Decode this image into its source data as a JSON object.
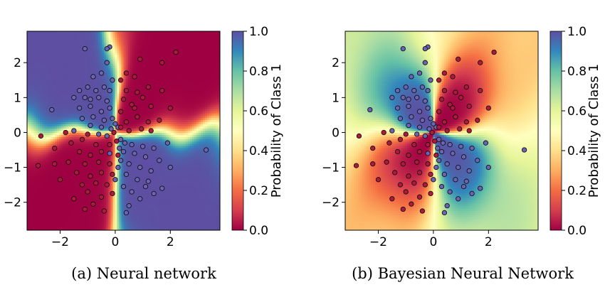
{
  "chart_data": [
    {
      "type": "heatmap",
      "panel": "a",
      "caption": "(a) Neural network",
      "colorbar_label": "Probability of Class 1",
      "colorbar_ticks": [
        "0.0",
        "0.2",
        "0.4",
        "0.6",
        "0.8",
        "1.0"
      ],
      "colorbar_range": [
        0.0,
        1.0
      ],
      "colormap": "Spectral",
      "xlim": [
        -3.2,
        3.8
      ],
      "ylim": [
        -2.8,
        2.9
      ],
      "xticks": [
        -2,
        0,
        2
      ],
      "xtick_labels": [
        "−2",
        "0",
        "2"
      ],
      "yticks": [
        -2,
        -1,
        0,
        1,
        2
      ],
      "ytick_labels": [
        "−2",
        "−1",
        "0",
        "1",
        "2"
      ],
      "grid": false,
      "legend": "none",
      "class_colors": {
        "class_0": "#b2183c",
        "class_1": "#6b63b5"
      }
    },
    {
      "type": "heatmap",
      "panel": "b",
      "caption": "(b) Bayesian Neural Network",
      "colorbar_label": "Probability of Class 1",
      "colorbar_ticks": [
        "0.0",
        "0.2",
        "0.4",
        "0.6",
        "0.8",
        "1.0"
      ],
      "colorbar_range": [
        0.0,
        1.0
      ],
      "colormap": "Spectral",
      "xlim": [
        -3.2,
        3.8
      ],
      "ylim": [
        -2.8,
        2.9
      ],
      "xticks": [
        -2,
        0,
        2
      ],
      "xtick_labels": [
        "−2",
        "0",
        "2"
      ],
      "yticks": [
        -2,
        -1,
        0,
        1,
        2
      ],
      "ytick_labels": [
        "−2",
        "−1",
        "0",
        "1",
        "2"
      ],
      "grid": false,
      "legend": "none",
      "class_colors": {
        "class_0": "#b2183c",
        "class_1": "#6b63b5"
      }
    }
  ],
  "points": [
    [
      -1.1,
      2.4,
      1
    ],
    [
      -0.2,
      2.45,
      1
    ],
    [
      -0.3,
      2.4,
      1
    ],
    [
      -0.3,
      2.0,
      1
    ],
    [
      -0.5,
      1.7,
      1
    ],
    [
      -0.8,
      1.6,
      1
    ],
    [
      -0.1,
      1.5,
      1
    ],
    [
      -1.3,
      1.2,
      1
    ],
    [
      -1.0,
      1.3,
      1
    ],
    [
      -0.7,
      1.2,
      1
    ],
    [
      -0.4,
      1.3,
      1
    ],
    [
      -0.2,
      1.2,
      1
    ],
    [
      -1.5,
      1.0,
      1
    ],
    [
      -1.1,
      1.0,
      1
    ],
    [
      -0.9,
      0.95,
      1
    ],
    [
      -0.6,
      1.0,
      1
    ],
    [
      -0.3,
      0.9,
      1
    ],
    [
      -2.3,
      0.65,
      1
    ],
    [
      -1.3,
      0.7,
      1
    ],
    [
      -0.9,
      0.75,
      1
    ],
    [
      -0.5,
      0.6,
      1
    ],
    [
      -0.2,
      0.7,
      1
    ],
    [
      -1.2,
      0.4,
      1
    ],
    [
      -0.8,
      0.45,
      1
    ],
    [
      -0.4,
      0.35,
      1
    ],
    [
      -0.1,
      0.4,
      1
    ],
    [
      -0.9,
      0.2,
      1
    ],
    [
      -0.5,
      0.15,
      1
    ],
    [
      -0.15,
      0.1,
      1
    ],
    [
      0.1,
      0.15,
      1
    ],
    [
      -0.3,
      -0.1,
      1
    ],
    [
      0.2,
      -0.2,
      1
    ],
    [
      0.35,
      -0.3,
      1
    ],
    [
      0.6,
      -0.35,
      1
    ],
    [
      1.0,
      -0.4,
      1
    ],
    [
      1.4,
      -0.45,
      1
    ],
    [
      0.3,
      -0.55,
      1
    ],
    [
      0.7,
      -0.6,
      1
    ],
    [
      1.1,
      -0.7,
      1
    ],
    [
      1.6,
      -0.8,
      1
    ],
    [
      0.2,
      -0.8,
      1
    ],
    [
      0.5,
      -0.9,
      1
    ],
    [
      0.9,
      -1.0,
      1
    ],
    [
      1.3,
      -1.1,
      1
    ],
    [
      2.0,
      -1.0,
      1
    ],
    [
      0.4,
      -1.2,
      1
    ],
    [
      0.8,
      -1.35,
      1
    ],
    [
      1.2,
      -1.4,
      1
    ],
    [
      1.7,
      -1.6,
      1
    ],
    [
      0.3,
      -1.55,
      1
    ],
    [
      0.6,
      -1.7,
      1
    ],
    [
      1.4,
      -1.75,
      1
    ],
    [
      0.9,
      -1.9,
      1
    ],
    [
      0.5,
      -2.1,
      1
    ],
    [
      0.4,
      -2.3,
      1
    ],
    [
      3.3,
      -0.5,
      1
    ],
    [
      0.1,
      -1.0,
      1
    ],
    [
      0.0,
      -1.35,
      1
    ],
    [
      -0.2,
      -0.6,
      1
    ],
    [
      0.15,
      -0.45,
      1
    ],
    [
      0.0,
      0.25,
      1
    ],
    [
      -1.5,
      0.05,
      1
    ],
    [
      -0.6,
      -0.05,
      1
    ],
    [
      1.9,
      -0.3,
      1
    ],
    [
      1.1,
      -1.55,
      1
    ],
    [
      1.7,
      2.0,
      0
    ],
    [
      0.9,
      2.1,
      0
    ],
    [
      2.2,
      2.3,
      0
    ],
    [
      0.4,
      1.7,
      0
    ],
    [
      0.7,
      1.6,
      0
    ],
    [
      0.2,
      1.5,
      0
    ],
    [
      1.2,
      1.3,
      0
    ],
    [
      0.8,
      1.15,
      0
    ],
    [
      0.4,
      1.2,
      0
    ],
    [
      1.0,
      1.0,
      0
    ],
    [
      1.7,
      1.2,
      0
    ],
    [
      0.3,
      0.95,
      0
    ],
    [
      0.6,
      0.8,
      0
    ],
    [
      1.3,
      0.75,
      0
    ],
    [
      2.0,
      0.7,
      0
    ],
    [
      0.2,
      0.6,
      0
    ],
    [
      0.8,
      0.45,
      0
    ],
    [
      1.2,
      0.3,
      0
    ],
    [
      1.6,
      0.35,
      0
    ],
    [
      0.4,
      0.3,
      0
    ],
    [
      0.95,
      0.1,
      0
    ],
    [
      0.5,
      0.05,
      0
    ],
    [
      1.3,
      0.05,
      0
    ],
    [
      0.2,
      0.15,
      0
    ],
    [
      0.7,
      0.7,
      0
    ],
    [
      -2.8,
      -0.95,
      0
    ],
    [
      -2.7,
      -0.1,
      0
    ],
    [
      -2.2,
      -0.45,
      0
    ],
    [
      -1.6,
      -0.3,
      0
    ],
    [
      -1.2,
      -0.2,
      0
    ],
    [
      -0.7,
      -0.35,
      0
    ],
    [
      -1.3,
      -0.55,
      0
    ],
    [
      -0.9,
      -0.65,
      0
    ],
    [
      -0.5,
      -0.55,
      0
    ],
    [
      -1.7,
      -0.85,
      0
    ],
    [
      -1.1,
      -0.9,
      0
    ],
    [
      -0.6,
      -0.85,
      0
    ],
    [
      -0.2,
      -0.9,
      0
    ],
    [
      -1.4,
      -1.15,
      0
    ],
    [
      -0.9,
      -1.25,
      0
    ],
    [
      -0.5,
      -1.15,
      0
    ],
    [
      -0.1,
      -1.2,
      0
    ],
    [
      -2.0,
      -1.35,
      0
    ],
    [
      -1.2,
      -1.5,
      0
    ],
    [
      -0.7,
      -1.45,
      0
    ],
    [
      -0.3,
      -1.5,
      0
    ],
    [
      -1.0,
      -1.7,
      0
    ],
    [
      -0.5,
      -1.85,
      0
    ],
    [
      -0.1,
      -1.75,
      0
    ],
    [
      -0.8,
      -2.05,
      0
    ],
    [
      -0.4,
      -2.25,
      0
    ],
    [
      -1.1,
      -2.2,
      0
    ],
    [
      -1.5,
      -1.9,
      0
    ],
    [
      -2.2,
      -0.9,
      0
    ],
    [
      -0.2,
      -0.35,
      0
    ],
    [
      0.05,
      -0.25,
      0
    ],
    [
      -0.05,
      0.0,
      0
    ],
    [
      -1.8,
      0.0,
      0
    ],
    [
      -1.0,
      -0.05,
      0
    ],
    [
      0.1,
      -0.65,
      0
    ]
  ]
}
